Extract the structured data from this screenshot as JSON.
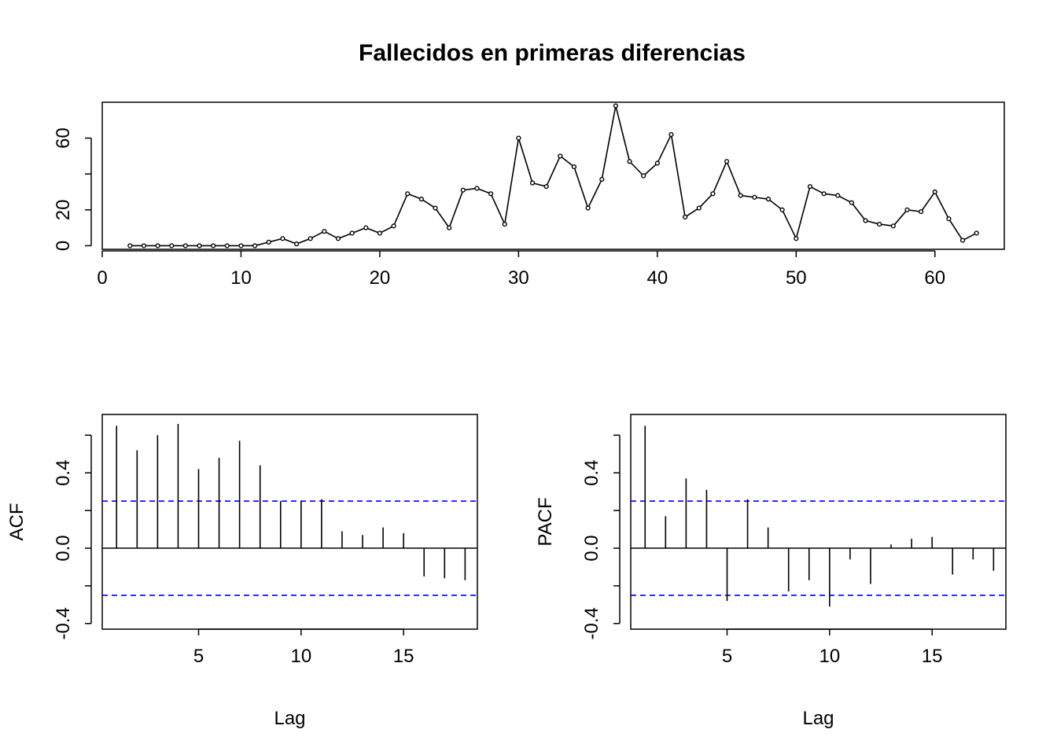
{
  "figure": {
    "title": "Fallecidos en primeras diferencias"
  },
  "chart_data": [
    {
      "type": "line",
      "title": "Fallecidos en primeras diferencias",
      "xlabel": "",
      "ylabel": "",
      "xlim": [
        0,
        65
      ],
      "ylim": [
        -2,
        80
      ],
      "xticks": [
        0,
        10,
        20,
        30,
        40,
        50,
        60
      ],
      "yticks": [
        0,
        20,
        40,
        60
      ],
      "ytick_labels": [
        "0",
        "20",
        "",
        "60"
      ],
      "markers": true,
      "x": [
        2,
        3,
        4,
        5,
        6,
        7,
        8,
        9,
        10,
        11,
        12,
        13,
        14,
        15,
        16,
        17,
        18,
        19,
        20,
        21,
        22,
        23,
        24,
        25,
        26,
        27,
        28,
        29,
        30,
        31,
        32,
        33,
        34,
        35,
        36,
        37,
        38,
        39,
        40,
        41,
        42,
        43,
        44,
        45,
        46,
        47,
        48,
        49,
        50,
        51,
        52,
        53,
        54,
        55,
        56,
        57,
        58,
        59,
        60,
        61,
        62,
        63
      ],
      "values": [
        0,
        0,
        0,
        0,
        0,
        0,
        0,
        0,
        0,
        0,
        2,
        4,
        1,
        4,
        8,
        4,
        7,
        10,
        7,
        11,
        29,
        26,
        21,
        10,
        31,
        32,
        29,
        12,
        60,
        35,
        33,
        50,
        44,
        21,
        37,
        78,
        47,
        39,
        46,
        62,
        16,
        21,
        29,
        47,
        28,
        27,
        26,
        20,
        4,
        33,
        29,
        28,
        24,
        14,
        12,
        11,
        20,
        19,
        30,
        15,
        3,
        7
      ],
      "grid": false,
      "legend": "none"
    },
    {
      "type": "bar",
      "xlabel": "Lag",
      "ylabel": "ACF",
      "xlim": [
        0.3,
        18.6
      ],
      "ylim": [
        -0.43,
        0.71
      ],
      "xticks": [
        5,
        10,
        15
      ],
      "yticks": [
        -0.4,
        -0.2,
        0.0,
        0.2,
        0.4,
        0.6
      ],
      "ytick_labels": [
        "-0.4",
        "",
        "0.0",
        "",
        "0.4",
        ""
      ],
      "lags": [
        1,
        2,
        3,
        4,
        5,
        6,
        7,
        8,
        9,
        10,
        11,
        12,
        13,
        14,
        15,
        16,
        17,
        18
      ],
      "values": [
        0.65,
        0.52,
        0.6,
        0.66,
        0.42,
        0.48,
        0.57,
        0.44,
        0.25,
        0.25,
        0.26,
        0.09,
        0.07,
        0.11,
        0.08,
        -0.15,
        -0.16,
        -0.17
      ],
      "confidence_bound": 0.25,
      "grid": false,
      "legend": "none"
    },
    {
      "type": "bar",
      "xlabel": "Lag",
      "ylabel": "PACF",
      "xlim": [
        0.3,
        18.6
      ],
      "ylim": [
        -0.43,
        0.71
      ],
      "xticks": [
        5,
        10,
        15
      ],
      "yticks": [
        -0.4,
        -0.2,
        0.0,
        0.2,
        0.4,
        0.6
      ],
      "ytick_labels": [
        "-0.4",
        "",
        "0.0",
        "",
        "0.4",
        ""
      ],
      "lags": [
        1,
        2,
        3,
        4,
        5,
        6,
        7,
        8,
        9,
        10,
        11,
        12,
        13,
        14,
        15,
        16,
        17,
        18
      ],
      "values": [
        0.65,
        0.17,
        0.37,
        0.31,
        -0.28,
        0.26,
        0.11,
        -0.23,
        -0.17,
        -0.31,
        -0.06,
        -0.19,
        0.02,
        0.05,
        0.06,
        -0.14,
        -0.06,
        -0.12
      ],
      "confidence_bound": 0.25,
      "grid": false,
      "legend": "none"
    }
  ],
  "colors": {
    "series": "#000000",
    "confidence_band": "#0000ff",
    "axes": "#000000",
    "background": "#ffffff"
  }
}
